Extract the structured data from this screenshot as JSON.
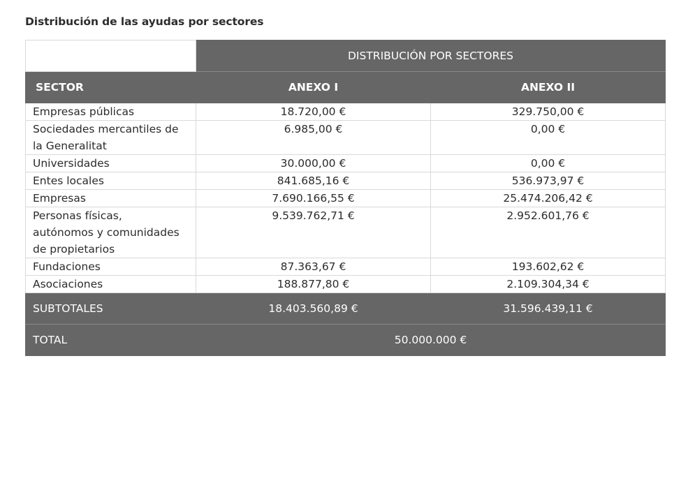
{
  "title": "Distribución de las ayudas por sectores",
  "table": {
    "group_header": "DISTRIBUCIÓN POR SECTORES",
    "columns": {
      "sector": "SECTOR",
      "annex1": "ANEXO I",
      "annex2": "ANEXO II"
    },
    "rows": [
      {
        "sector": "Empresas públicas",
        "annex1": "18.720,00 €",
        "annex2": "329.750,00 €"
      },
      {
        "sector": "Sociedades mercantiles de la Generalitat",
        "annex1": "6.985,00 €",
        "annex2": "0,00 €"
      },
      {
        "sector": "Universidades",
        "annex1": "30.000,00 €",
        "annex2": "0,00 €"
      },
      {
        "sector": "Entes locales",
        "annex1": "841.685,16 €",
        "annex2": "536.973,97 €"
      },
      {
        "sector": "Empresas",
        "annex1": "7.690.166,55 €",
        "annex2": "25.474.206,42 €"
      },
      {
        "sector": "Personas físicas, autónomos y comunidades de propietarios",
        "annex1": "9.539.762,71 €",
        "annex2": "2.952.601,76 €"
      },
      {
        "sector": "Fundaciones",
        "annex1": "87.363,67 €",
        "annex2": "193.602,62 €"
      },
      {
        "sector": "Asociaciones",
        "annex1": "188.877,80 €",
        "annex2": "2.109.304,34 €"
      }
    ],
    "subtotal": {
      "label": "SUBTOTALES",
      "annex1": "18.403.560,89 €",
      "annex2": "31.596.439,11 €"
    },
    "total": {
      "label": "TOTAL",
      "value": "50.000.000 €"
    }
  },
  "colors": {
    "header_bg": "#666666",
    "header_text": "#ffffff",
    "border": "#d9d9d9"
  }
}
